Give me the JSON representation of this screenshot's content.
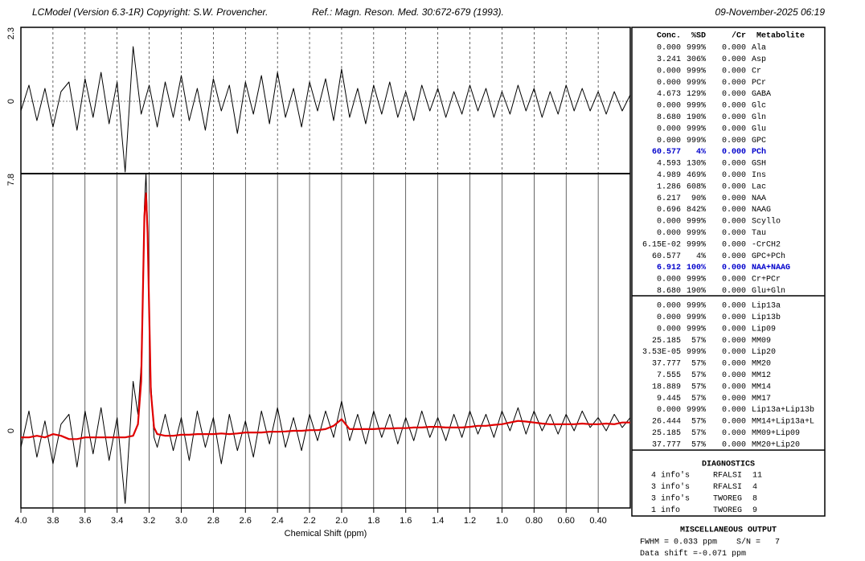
{
  "header": {
    "left": "LCModel (Version 6.3-1R) Copyright: S.W. Provencher.",
    "ref": "Ref.: Magn. Reson. Med. 30:672-679 (1993).",
    "date": "09-November-2025  06:19"
  },
  "chart_data": [
    {
      "type": "line",
      "xlim": [
        4.0,
        0.2
      ],
      "ylim": [
        -2.25,
        2.3
      ],
      "yticks": [
        0,
        2.3
      ],
      "x": [
        4.0,
        3.95,
        3.9,
        3.85,
        3.8,
        3.75,
        3.7,
        3.65,
        3.6,
        3.55,
        3.5,
        3.45,
        3.4,
        3.35,
        3.3,
        3.25,
        3.2,
        3.15,
        3.1,
        3.05,
        3.0,
        2.95,
        2.9,
        2.85,
        2.8,
        2.75,
        2.7,
        2.65,
        2.6,
        2.55,
        2.5,
        2.45,
        2.4,
        2.35,
        2.3,
        2.25,
        2.2,
        2.15,
        2.1,
        2.05,
        2.0,
        1.95,
        1.9,
        1.85,
        1.8,
        1.75,
        1.7,
        1.65,
        1.6,
        1.55,
        1.5,
        1.45,
        1.4,
        1.35,
        1.3,
        1.25,
        1.2,
        1.15,
        1.1,
        1.05,
        1.0,
        0.95,
        0.9,
        0.85,
        0.8,
        0.75,
        0.7,
        0.65,
        0.6,
        0.55,
        0.5,
        0.45,
        0.4,
        0.35,
        0.3,
        0.25,
        0.2
      ],
      "series": [
        {
          "color": "#000000",
          "values": [
            -0.3,
            0.5,
            -0.6,
            0.4,
            -0.8,
            0.3,
            0.6,
            -0.9,
            0.7,
            -0.5,
            0.9,
            -0.7,
            0.6,
            -2.2,
            1.7,
            -0.4,
            0.5,
            -0.8,
            0.6,
            -0.5,
            0.8,
            -0.6,
            0.4,
            -0.9,
            0.7,
            -0.3,
            0.5,
            -1.0,
            0.6,
            -0.4,
            0.8,
            -0.7,
            0.9,
            -0.5,
            0.4,
            -0.8,
            0.6,
            -0.3,
            0.7,
            -0.6,
            1.0,
            -0.5,
            0.4,
            -0.7,
            0.5,
            -0.4,
            0.6,
            -0.5,
            0.3,
            -0.6,
            0.5,
            -0.3,
            0.4,
            -0.5,
            0.3,
            -0.4,
            0.5,
            -0.3,
            0.4,
            -0.5,
            0.3,
            -0.4,
            0.5,
            -0.3,
            0.4,
            -0.5,
            0.3,
            -0.4,
            0.5,
            -0.3,
            0.4,
            -0.3,
            0.3,
            -0.4,
            0.3,
            -0.3,
            0.2
          ]
        }
      ]
    },
    {
      "type": "line",
      "xlim": [
        4.0,
        0.2
      ],
      "ylim": [
        -2.34,
        7.8
      ],
      "yticks": [
        0,
        7.8
      ],
      "x_label": "Chemical Shift (ppm)",
      "grid": true,
      "xticks": [
        {
          "value": 4,
          "label": "4.0"
        },
        3.8,
        3.6,
        3.4,
        3.2,
        {
          "value": 3,
          "label": "3.0"
        },
        2.8,
        2.6,
        2.4,
        2.2,
        {
          "value": 2,
          "label": "2.0"
        },
        1.8,
        1.6,
        1.4,
        1.2,
        {
          "value": 1,
          "label": "1.0"
        },
        {
          "value": 0.8,
          "label": "0.80"
        },
        {
          "value": 0.6,
          "label": "0.60"
        },
        {
          "value": 0.4,
          "label": "0.40"
        }
      ],
      "x": [
        4.0,
        3.95,
        3.9,
        3.85,
        3.8,
        3.75,
        3.7,
        3.65,
        3.6,
        3.55,
        3.5,
        3.45,
        3.4,
        3.35,
        3.3,
        3.27,
        3.25,
        3.23,
        3.22,
        3.21,
        3.19,
        3.17,
        3.15,
        3.1,
        3.05,
        3.0,
        2.95,
        2.9,
        2.85,
        2.8,
        2.75,
        2.7,
        2.65,
        2.6,
        2.55,
        2.5,
        2.45,
        2.4,
        2.35,
        2.3,
        2.25,
        2.2,
        2.15,
        2.1,
        2.05,
        2.0,
        1.95,
        1.9,
        1.85,
        1.8,
        1.75,
        1.7,
        1.65,
        1.6,
        1.55,
        1.5,
        1.45,
        1.4,
        1.35,
        1.3,
        1.25,
        1.2,
        1.15,
        1.1,
        1.05,
        1.0,
        0.95,
        0.9,
        0.85,
        0.8,
        0.75,
        0.7,
        0.65,
        0.6,
        0.55,
        0.5,
        0.45,
        0.4,
        0.35,
        0.3,
        0.25,
        0.2
      ],
      "series": [
        {
          "color": "#000000",
          "width": 1,
          "values": [
            -0.5,
            0.6,
            -0.8,
            0.3,
            -1.0,
            0.2,
            0.5,
            -1.1,
            0.6,
            -0.7,
            0.7,
            -0.9,
            0.4,
            -2.2,
            1.5,
            0.5,
            2.0,
            6.8,
            7.8,
            6.2,
            1.5,
            -0.2,
            -0.5,
            0.5,
            -0.6,
            0.4,
            -0.9,
            0.6,
            -0.5,
            0.4,
            -1.0,
            0.5,
            -0.6,
            0.3,
            -0.8,
            0.6,
            -0.4,
            0.7,
            -0.5,
            0.4,
            -0.6,
            0.5,
            -0.3,
            0.6,
            -0.2,
            0.9,
            -0.3,
            0.5,
            -0.4,
            0.6,
            -0.2,
            0.5,
            -0.4,
            0.4,
            -0.3,
            0.6,
            -0.2,
            0.4,
            -0.3,
            0.5,
            -0.2,
            0.6,
            -0.1,
            0.5,
            -0.2,
            0.6,
            0,
            0.7,
            -0.1,
            0.6,
            0,
            0.5,
            -0.1,
            0.5,
            0,
            0.6,
            0.1,
            0.4,
            0,
            0.5,
            0.1,
            0.4
          ]
        },
        {
          "color": "#e00000",
          "width": 2.2,
          "values": [
            -0.2,
            -0.2,
            -0.15,
            -0.2,
            -0.1,
            -0.15,
            -0.25,
            -0.25,
            -0.2,
            -0.2,
            -0.2,
            -0.2,
            -0.2,
            -0.2,
            -0.15,
            0.2,
            1.5,
            6.5,
            7.2,
            6.0,
            1.2,
            0.1,
            -0.1,
            -0.15,
            -0.15,
            -0.12,
            -0.12,
            -0.1,
            -0.1,
            -0.1,
            -0.08,
            -0.1,
            -0.08,
            -0.05,
            -0.05,
            -0.05,
            -0.03,
            -0.03,
            -0.02,
            0,
            0,
            0.02,
            0.02,
            0.05,
            0.15,
            0.35,
            0.05,
            0.05,
            0.05,
            0.05,
            0.07,
            0.07,
            0.08,
            0.08,
            0.1,
            0.1,
            0.12,
            0.12,
            0.1,
            0.1,
            0.1,
            0.12,
            0.15,
            0.15,
            0.18,
            0.2,
            0.25,
            0.3,
            0.28,
            0.25,
            0.22,
            0.2,
            0.2,
            0.2,
            0.2,
            0.22,
            0.2,
            0.2,
            0.22,
            0.2,
            0.25,
            0.25
          ]
        }
      ]
    }
  ],
  "table": {
    "header": [
      "Conc.",
      "%SD",
      "/Cr",
      "Metabolite"
    ],
    "highlight_color": "#0000cc",
    "groups": [
      {
        "highlight_rows": [
          9,
          19
        ],
        "rows": [
          [
            "0.000",
            "999%",
            "0.000",
            "Ala"
          ],
          [
            "3.241",
            "306%",
            "0.000",
            "Asp"
          ],
          [
            "0.000",
            "999%",
            "0.000",
            "Cr"
          ],
          [
            "0.000",
            "999%",
            "0.000",
            "PCr"
          ],
          [
            "4.673",
            "129%",
            "0.000",
            "GABA"
          ],
          [
            "0.000",
            "999%",
            "0.000",
            "Glc"
          ],
          [
            "8.680",
            "190%",
            "0.000",
            "Gln"
          ],
          [
            "0.000",
            "999%",
            "0.000",
            "Glu"
          ],
          [
            "0.000",
            "999%",
            "0.000",
            "GPC"
          ],
          [
            "60.577",
            "4%",
            "0.000",
            "PCh"
          ],
          [
            "4.593",
            "130%",
            "0.000",
            "GSH"
          ],
          [
            "4.989",
            "469%",
            "0.000",
            "Ins"
          ],
          [
            "1.286",
            "608%",
            "0.000",
            "Lac"
          ],
          [
            "6.217",
            "90%",
            "0.000",
            "NAA"
          ],
          [
            "0.696",
            "842%",
            "0.000",
            "NAAG"
          ],
          [
            "0.000",
            "999%",
            "0.000",
            "Scyllo"
          ],
          [
            "0.000",
            "999%",
            "0.000",
            "Tau"
          ],
          [
            "6.15E-02",
            "999%",
            "0.000",
            "-CrCH2"
          ],
          [
            "60.577",
            "4%",
            "0.000",
            "GPC+PCh"
          ],
          [
            "6.912",
            "100%",
            "0.000",
            "NAA+NAAG"
          ],
          [
            "0.000",
            "999%",
            "0.000",
            "Cr+PCr"
          ],
          [
            "8.680",
            "190%",
            "0.000",
            "Glu+Gln"
          ]
        ]
      },
      {
        "highlight_rows": [],
        "rows": [
          [
            "0.000",
            "999%",
            "0.000",
            "Lip13a"
          ],
          [
            "0.000",
            "999%",
            "0.000",
            "Lip13b"
          ],
          [
            "0.000",
            "999%",
            "0.000",
            "Lip09"
          ],
          [
            "25.185",
            "57%",
            "0.000",
            "MM09"
          ],
          [
            "3.53E-05",
            "999%",
            "0.000",
            "Lip20"
          ],
          [
            "37.777",
            "57%",
            "0.000",
            "MM20"
          ],
          [
            "7.555",
            "57%",
            "0.000",
            "MM12"
          ],
          [
            "18.889",
            "57%",
            "0.000",
            "MM14"
          ],
          [
            "9.445",
            "57%",
            "0.000",
            "MM17"
          ],
          [
            "0.000",
            "999%",
            "0.000",
            "Lip13a+Lip13b"
          ],
          [
            "26.444",
            "57%",
            "0.000",
            "MM14+Lip13a+L"
          ],
          [
            "25.185",
            "57%",
            "0.000",
            "MM09+Lip09"
          ],
          [
            "37.777",
            "57%",
            "0.000",
            "MM20+Lip20"
          ]
        ]
      }
    ]
  },
  "diagnostics": {
    "title": "DIAGNOSTICS",
    "rows": [
      [
        "4 info's",
        "RFALSI",
        "11"
      ],
      [
        "3 info's",
        "RFALSI",
        "4"
      ],
      [
        "3 info's",
        "TWOREG",
        "8"
      ],
      [
        "1 info",
        "TWOREG",
        "9"
      ]
    ]
  },
  "misc": {
    "title": "MISCELLANEOUS OUTPUT",
    "lines": [
      "FWHM = 0.033 ppm    S/N =   7",
      "Data shift =-0.071 ppm"
    ]
  }
}
